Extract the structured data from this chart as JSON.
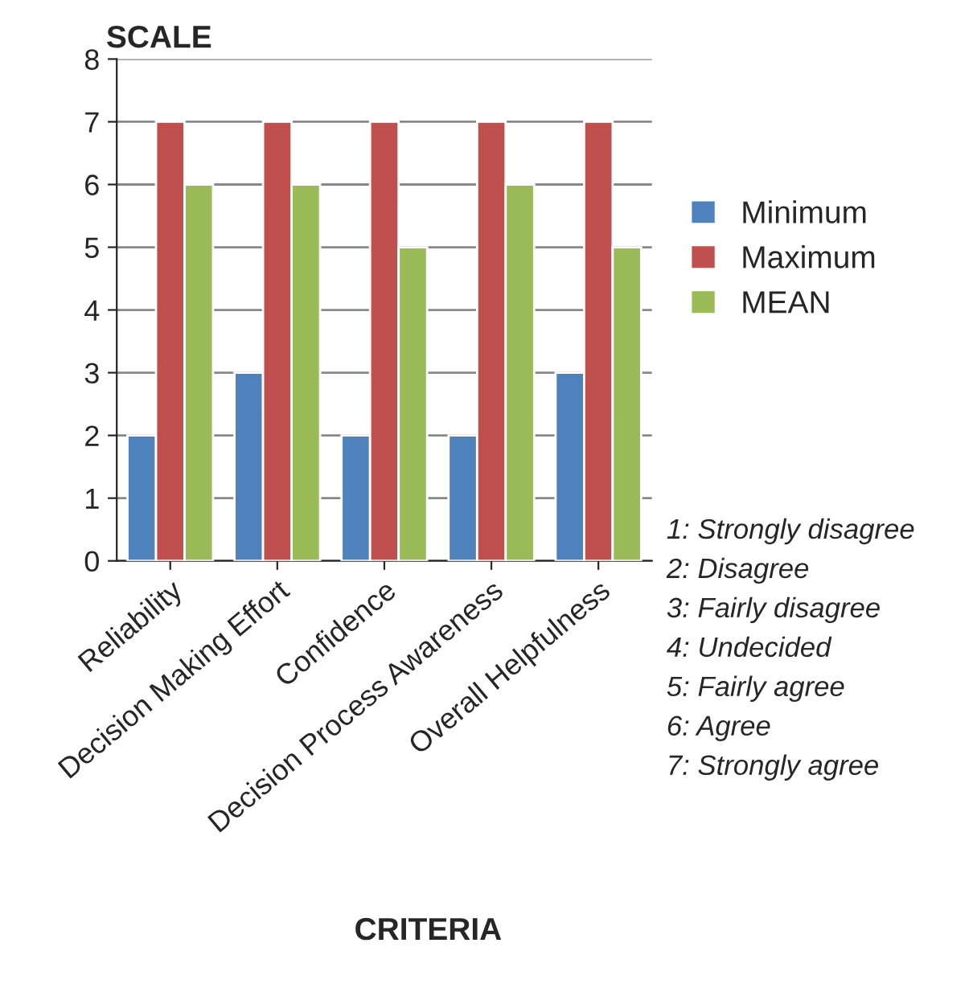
{
  "chart_data": {
    "type": "bar",
    "ylabel": "SCALE",
    "xlabel": "CRITERIA",
    "categories": [
      "Reliability",
      "Decision Making Effort",
      "Confidence",
      "Decision Process Awareness",
      "Overall Helpfulness"
    ],
    "series": [
      {
        "name": "Minimum",
        "color": "#4f81bd",
        "values": [
          2,
          3,
          2,
          2,
          3
        ]
      },
      {
        "name": "Maximum",
        "color": "#c0504d",
        "values": [
          7,
          7,
          7,
          7,
          7
        ]
      },
      {
        "name": "MEAN",
        "color": "#9bbb59",
        "values": [
          6,
          6,
          5,
          6,
          5
        ]
      }
    ],
    "ylim": [
      0,
      8
    ],
    "yticks": [
      0,
      1,
      2,
      3,
      4,
      5,
      6,
      7,
      8
    ],
    "grid": "y",
    "legend": "right",
    "annotations": [
      "1: Strongly disagree",
      "2: Disagree",
      "3: Fairly disagree",
      "4: Undecided",
      "5: Fairly agree",
      "6: Agree",
      "7: Strongly agree"
    ]
  }
}
